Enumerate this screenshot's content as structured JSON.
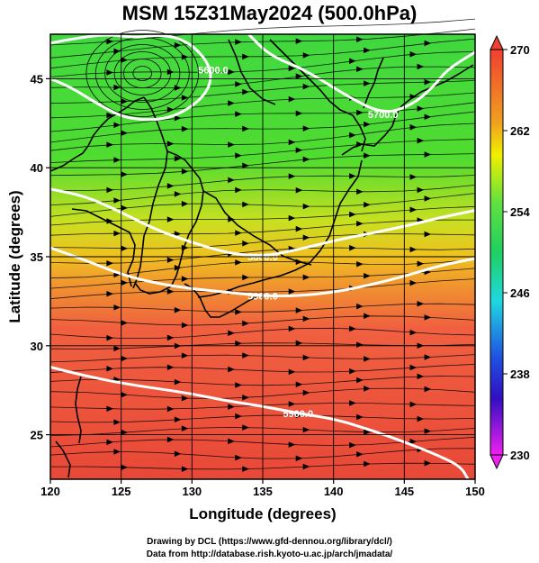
{
  "title": "MSM 15Z31May2024 (500.0hPa)",
  "x_axis": {
    "label": "Longitude (degrees)",
    "ticks": [
      "120",
      "125",
      "130",
      "135",
      "140",
      "145",
      "150"
    ],
    "tick_values": [
      120,
      125,
      130,
      135,
      140,
      145,
      150
    ],
    "range": [
      120,
      150
    ]
  },
  "y_axis": {
    "label": "Latitude  (degrees)",
    "ticks": [
      "25",
      "30",
      "35",
      "40",
      "45"
    ],
    "tick_values": [
      25,
      30,
      35,
      40,
      45
    ],
    "range": [
      22.5,
      47.5
    ]
  },
  "colorbar": {
    "ticks": [
      "270",
      "262",
      "254",
      "246",
      "238",
      "230"
    ],
    "tick_values": [
      270,
      262,
      254,
      246,
      238,
      230
    ],
    "range": [
      230,
      270
    ],
    "colors": {
      "high": "#f05030",
      "mid_high": "#f0e000",
      "mid": "#30d030",
      "mid_low": "#20c8d0",
      "low_blue": "#2030d0",
      "lowest": "#e020e0"
    }
  },
  "contours": [
    {
      "label": "5600.0",
      "points": [
        [
          120,
          47
        ],
        [
          122,
          47.3
        ],
        [
          124,
          47.5
        ],
        [
          126,
          47.3
        ],
        [
          128,
          47.5
        ],
        [
          130,
          47
        ],
        [
          131.5,
          45.5
        ],
        [
          131,
          44
        ],
        [
          128.5,
          42.7
        ],
        [
          125.5,
          42.7
        ],
        [
          123.5,
          43.5
        ],
        [
          121.5,
          44.5
        ],
        [
          120,
          45
        ]
      ]
    },
    {
      "label": "5700.0",
      "points": [
        [
          134,
          47.5
        ],
        [
          135.5,
          46.3
        ],
        [
          138,
          45.5
        ],
        [
          141,
          44
        ],
        [
          143.5,
          43
        ],
        [
          145.5,
          43.5
        ],
        [
          147,
          44.5
        ],
        [
          148,
          45.5
        ],
        [
          150,
          46.5
        ]
      ]
    },
    {
      "label": "5800.0",
      "points": [
        [
          120,
          38.8
        ],
        [
          122.5,
          38.4
        ],
        [
          125,
          37.5
        ],
        [
          127.5,
          36.5
        ],
        [
          130,
          35.8
        ],
        [
          132.5,
          35.2
        ],
        [
          135,
          35
        ],
        [
          137.5,
          35.4
        ],
        [
          140,
          35.9
        ],
        [
          142.5,
          36.3
        ],
        [
          145,
          36.7
        ],
        [
          147.5,
          37.2
        ],
        [
          150,
          37.6
        ]
      ]
    },
    {
      "label": "5900.0",
      "points": [
        [
          120,
          35.5
        ],
        [
          122.5,
          34.8
        ],
        [
          125,
          34
        ],
        [
          127.5,
          33.5
        ],
        [
          130,
          33.2
        ],
        [
          132.5,
          33
        ],
        [
          135,
          32.8
        ],
        [
          137.5,
          32.8
        ],
        [
          140,
          33
        ],
        [
          142.5,
          33.4
        ],
        [
          145,
          33.9
        ],
        [
          147.5,
          34.5
        ],
        [
          150,
          34.9
        ]
      ]
    },
    {
      "label": "5900.0",
      "points": [
        [
          120,
          28.8
        ],
        [
          122.5,
          28.3
        ],
        [
          125,
          27.9
        ],
        [
          127.5,
          27.6
        ],
        [
          130,
          27.3
        ],
        [
          132.5,
          26.9
        ],
        [
          135,
          26.6
        ],
        [
          137.5,
          26.2
        ],
        [
          140,
          25.9
        ],
        [
          142.5,
          25.3
        ],
        [
          145,
          24.6
        ],
        [
          147.5,
          23.8
        ],
        [
          149,
          23.2
        ],
        [
          149.5,
          22.5
        ]
      ]
    }
  ],
  "footer_lines": [
    "Drawing by DCL (https://www.gfd-dennou.org/library/dcl/)",
    "Data from http://database.rish.kyoto-u.ac.jp/arch/jmadata/"
  ]
}
